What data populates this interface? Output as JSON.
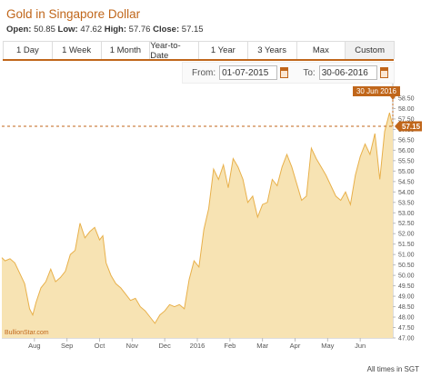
{
  "header": {
    "title": "Gold in Singapore Dollar",
    "ohlc": {
      "open_label": "Open:",
      "open": "50.85",
      "low_label": "Low:",
      "low": "47.62",
      "high_label": "High:",
      "high": "57.76",
      "close_label": "Close:",
      "close": "57.15"
    }
  },
  "tabs": [
    {
      "label": "1 Day"
    },
    {
      "label": "1 Week"
    },
    {
      "label": "1 Month"
    },
    {
      "label": "Year-to-Date"
    },
    {
      "label": "1 Year"
    },
    {
      "label": "3 Years"
    },
    {
      "label": "Max"
    },
    {
      "label": "Custom",
      "active": true
    }
  ],
  "range": {
    "from_label": "From:",
    "from_value": "01-07-2015",
    "to_label": "To:",
    "to_value": "30-06-2016"
  },
  "footer": "All times in SGT",
  "colors": {
    "accent": "#c0661a",
    "fill": "#f7e3b3",
    "line": "#e8b04a"
  },
  "chart_data": {
    "type": "area",
    "watermark": "BullionStar.com",
    "x_tick_labels": [
      "Aug",
      "Sep",
      "Oct",
      "Nov",
      "Dec",
      "2016",
      "Feb",
      "Mar",
      "Apr",
      "May",
      "Jun"
    ],
    "x_tick_months": [
      1,
      2,
      3,
      4,
      5,
      6,
      7,
      8,
      9,
      10,
      11
    ],
    "y_ticks": [
      47.0,
      47.5,
      48.0,
      48.5,
      49.0,
      49.5,
      50.0,
      50.5,
      51.0,
      51.5,
      52.0,
      52.5,
      53.0,
      53.5,
      54.0,
      54.5,
      55.0,
      55.5,
      56.0,
      56.5,
      57.0,
      57.5,
      58.0,
      58.5
    ],
    "ylim": [
      47.0,
      58.5
    ],
    "last_point_label": "30 Jun 2016",
    "last_value_label": "57.15",
    "series": [
      {
        "x": [
          0.0,
          0.1,
          0.25,
          0.4,
          0.55,
          0.7,
          0.85,
          0.95,
          1.05,
          1.2,
          1.35,
          1.5,
          1.65,
          1.8,
          1.95,
          2.1,
          2.25,
          2.4,
          2.55,
          2.7,
          2.85,
          3.0,
          3.1,
          3.2,
          3.35,
          3.5,
          3.65,
          3.8,
          3.95,
          4.1,
          4.25,
          4.4,
          4.55,
          4.7,
          4.85,
          5.0,
          5.15,
          5.3,
          5.45,
          5.6,
          5.75,
          5.9,
          6.05,
          6.2,
          6.35,
          6.5,
          6.65,
          6.8,
          6.95,
          7.1,
          7.25,
          7.4,
          7.55,
          7.7,
          7.85,
          8.0,
          8.15,
          8.3,
          8.45,
          8.6,
          8.75,
          8.9,
          9.05,
          9.2,
          9.35,
          9.5,
          9.65,
          9.8,
          9.95,
          10.1,
          10.25,
          10.4,
          10.55,
          10.7,
          10.85,
          11.0,
          11.15,
          11.3,
          11.45,
          11.6,
          11.75,
          11.9,
          12.0
        ],
        "values": [
          50.85,
          50.7,
          50.8,
          50.6,
          50.1,
          49.6,
          48.4,
          48.1,
          48.7,
          49.4,
          49.7,
          50.3,
          49.7,
          49.9,
          50.2,
          51.0,
          51.2,
          52.5,
          51.8,
          52.1,
          52.3,
          51.7,
          51.9,
          50.6,
          50.0,
          49.6,
          49.4,
          49.1,
          48.8,
          48.9,
          48.5,
          48.3,
          48.0,
          47.7,
          48.1,
          48.3,
          48.6,
          48.5,
          48.6,
          48.4,
          49.8,
          50.7,
          50.4,
          52.2,
          53.2,
          55.1,
          54.6,
          55.3,
          54.2,
          55.6,
          55.2,
          54.6,
          53.5,
          53.8,
          52.8,
          53.4,
          53.5,
          54.6,
          54.3,
          55.2,
          55.8,
          55.2,
          54.4,
          53.6,
          53.8,
          56.1,
          55.6,
          55.2,
          54.8,
          54.3,
          53.8,
          53.6,
          54.0,
          53.4,
          54.8,
          55.7,
          56.3,
          55.8,
          56.8,
          54.6,
          56.9,
          57.8,
          57.15
        ]
      }
    ]
  }
}
